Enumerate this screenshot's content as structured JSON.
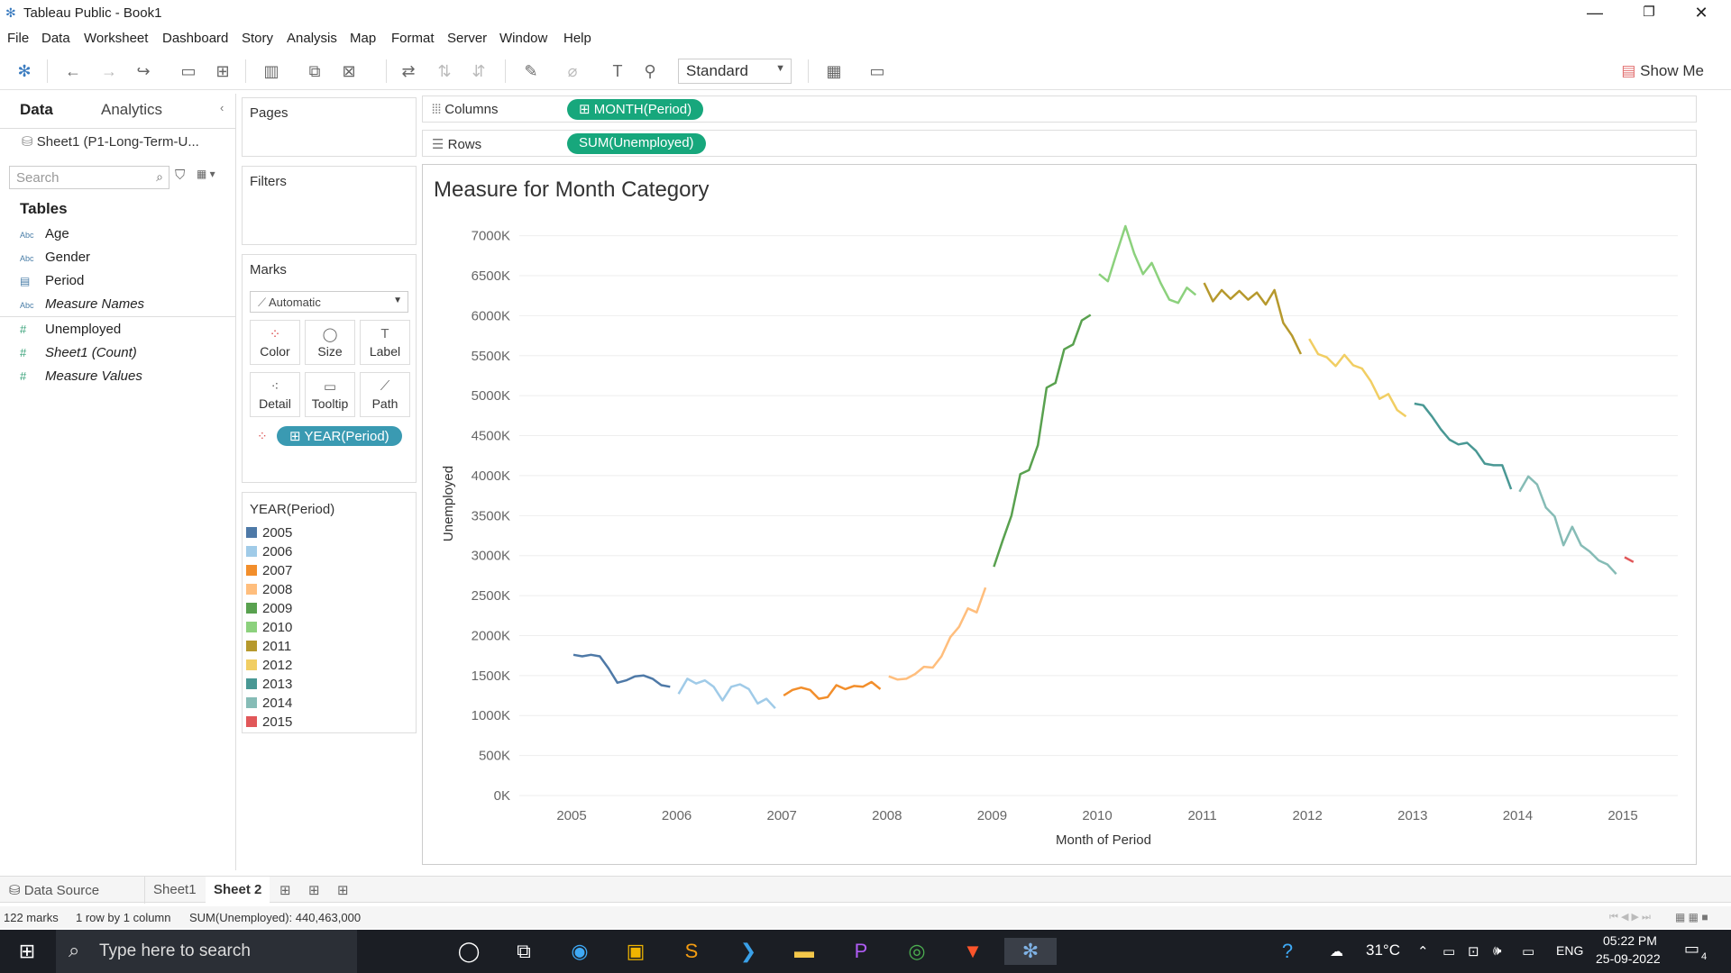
{
  "window": {
    "title": "Tableau Public - Book1",
    "minimize": "—",
    "restore": "❐",
    "close": "✕"
  },
  "menu": [
    "File",
    "Data",
    "Worksheet",
    "Dashboard",
    "Story",
    "Analysis",
    "Map",
    "Format",
    "Server",
    "Window",
    "Help"
  ],
  "toolbar": {
    "fit_mode": "Standard",
    "show_me": "Show Me"
  },
  "data_pane": {
    "tabs": [
      "Data",
      "Analytics"
    ],
    "source": "Sheet1 (P1-Long-Term-U...",
    "search_placeholder": "Search",
    "tables_header": "Tables",
    "dimensions": [
      {
        "type": "Abc",
        "name": "Age"
      },
      {
        "type": "Abc",
        "name": "Gender"
      },
      {
        "type": "date",
        "name": "Period"
      },
      {
        "type": "Abc",
        "name": "Measure Names"
      }
    ],
    "measures": [
      {
        "type": "#",
        "name": "Unemployed"
      },
      {
        "type": "#",
        "name": "Sheet1 (Count)"
      },
      {
        "type": "#",
        "name": "Measure Values"
      }
    ]
  },
  "cards": {
    "pages": "Pages",
    "filters": "Filters",
    "marks": "Marks",
    "mark_type": "Automatic",
    "mark_buttons": [
      "Color",
      "Size",
      "Label",
      "Detail",
      "Tooltip",
      "Path"
    ],
    "color_pill": "YEAR(Period)"
  },
  "legend": {
    "title": "YEAR(Period)",
    "items": [
      {
        "label": "2005",
        "color": "#4e79a7"
      },
      {
        "label": "2006",
        "color": "#a0cbe8"
      },
      {
        "label": "2007",
        "color": "#f28e2b"
      },
      {
        "label": "2008",
        "color": "#ffbe7d"
      },
      {
        "label": "2009",
        "color": "#59a14f"
      },
      {
        "label": "2010",
        "color": "#8cd17d"
      },
      {
        "label": "2011",
        "color": "#b6992d"
      },
      {
        "label": "2012",
        "color": "#f1ce63"
      },
      {
        "label": "2013",
        "color": "#499894"
      },
      {
        "label": "2014",
        "color": "#86bcb6"
      },
      {
        "label": "2015",
        "color": "#e15759"
      }
    ]
  },
  "shelves": {
    "columns_label": "Columns",
    "columns_pill": "MONTH(Period)",
    "rows_label": "Rows",
    "rows_pill": "SUM(Unemployed)"
  },
  "chart_data": {
    "type": "line",
    "title": "Measure for Month Category",
    "xlabel": "Month of Period",
    "ylabel": "Unemployed",
    "ylim": [
      0,
      7300000
    ],
    "y_ticks": [
      "0K",
      "500K",
      "1000K",
      "1500K",
      "2000K",
      "2500K",
      "3000K",
      "3500K",
      "4000K",
      "4500K",
      "5000K",
      "5500K",
      "6000K",
      "6500K",
      "7000K"
    ],
    "x_ticks": [
      "2005",
      "2006",
      "2007",
      "2008",
      "2009",
      "2010",
      "2011",
      "2012",
      "2013",
      "2014",
      "2015"
    ],
    "series": [
      {
        "name": "2005",
        "values": [
          1760000,
          1740000,
          1760000,
          1740000,
          1590000,
          1410000,
          1440000,
          1490000,
          1500000,
          1460000,
          1380000,
          1360000
        ]
      },
      {
        "name": "2006",
        "values": [
          1270000,
          1460000,
          1400000,
          1440000,
          1360000,
          1190000,
          1360000,
          1390000,
          1330000,
          1150000,
          1210000,
          1090000
        ]
      },
      {
        "name": "2007",
        "values": [
          1250000,
          1320000,
          1350000,
          1320000,
          1210000,
          1230000,
          1380000,
          1330000,
          1370000,
          1360000,
          1420000,
          1330000
        ]
      },
      {
        "name": "2008",
        "values": [
          1490000,
          1450000,
          1460000,
          1520000,
          1610000,
          1600000,
          1740000,
          1980000,
          2110000,
          2340000,
          2290000,
          2600000
        ]
      },
      {
        "name": "2009",
        "values": [
          2860000,
          3190000,
          3500000,
          4020000,
          4070000,
          4380000,
          5100000,
          5160000,
          5580000,
          5640000,
          5940000,
          6010000
        ]
      },
      {
        "name": "2010",
        "values": [
          6520000,
          6430000,
          6780000,
          7120000,
          6780000,
          6520000,
          6660000,
          6410000,
          6200000,
          6160000,
          6350000,
          6260000
        ]
      },
      {
        "name": "2011",
        "values": [
          6410000,
          6180000,
          6320000,
          6210000,
          6310000,
          6200000,
          6290000,
          6140000,
          6320000,
          5910000,
          5750000,
          5520000
        ]
      },
      {
        "name": "2012",
        "values": [
          5710000,
          5520000,
          5480000,
          5370000,
          5510000,
          5380000,
          5340000,
          5180000,
          4960000,
          5020000,
          4820000,
          4740000
        ]
      },
      {
        "name": "2013",
        "values": [
          4900000,
          4880000,
          4740000,
          4580000,
          4450000,
          4390000,
          4410000,
          4310000,
          4150000,
          4130000,
          4130000,
          3830000
        ]
      },
      {
        "name": "2014",
        "values": [
          3800000,
          3990000,
          3890000,
          3600000,
          3490000,
          3130000,
          3360000,
          3130000,
          3050000,
          2940000,
          2890000,
          2770000
        ]
      },
      {
        "name": "2015",
        "values": [
          2980000,
          2920000
        ]
      }
    ]
  },
  "sheet_tabs": {
    "data_source": "Data Source",
    "tabs": [
      "Sheet1",
      "Sheet 2"
    ]
  },
  "status": {
    "marks": "122 marks",
    "rows": "1 row by 1 column",
    "sum": "SUM(Unemployed): 440,463,000"
  },
  "taskbar": {
    "search_placeholder": "Type here to search",
    "temperature": "31°C",
    "lang": "ENG",
    "time": "05:22 PM",
    "date": "25-09-2022",
    "notif_count": "4"
  }
}
